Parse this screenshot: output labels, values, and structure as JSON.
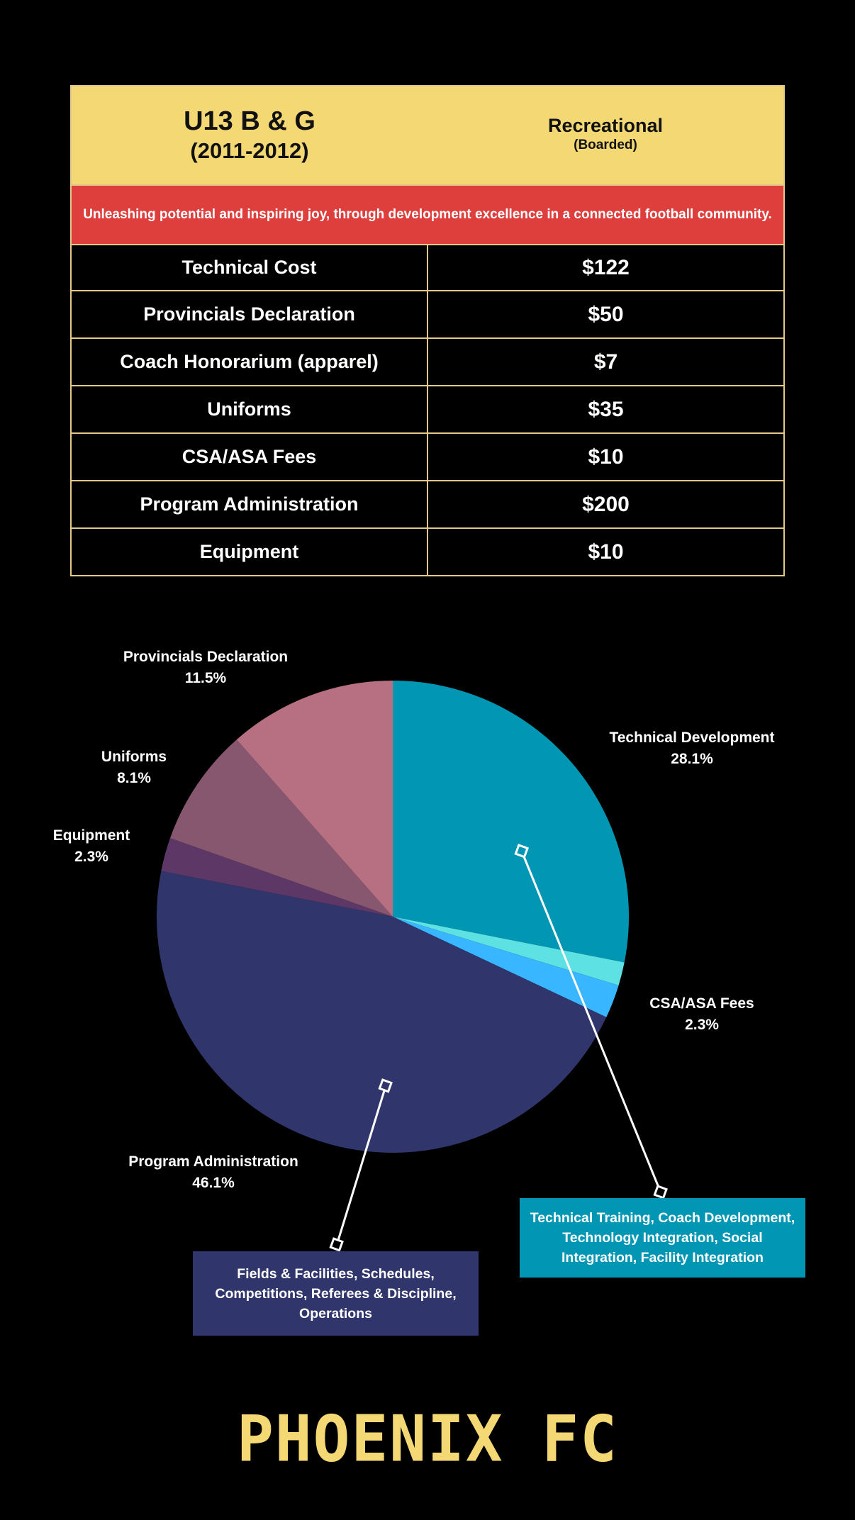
{
  "header": {
    "team_name": "U13 B & G",
    "team_years": "(2011-2012)",
    "program_type": "Recreational",
    "program_sub": "(Boarded)"
  },
  "mission": "Unleashing potential and inspiring joy, through development excellence in a connected football community.",
  "costs": [
    {
      "label": "Technical Cost",
      "value": "$122"
    },
    {
      "label": "Provincials Declaration",
      "value": "$50"
    },
    {
      "label": "Coach Honorarium (apparel)",
      "value": "$7"
    },
    {
      "label": "Uniforms",
      "value": "$35"
    },
    {
      "label": "CSA/ASA Fees",
      "value": "$10"
    },
    {
      "label": "Program Administration",
      "value": "$200"
    },
    {
      "label": "Equipment",
      "value": "$10"
    }
  ],
  "chart_data": {
    "type": "pie",
    "title": "",
    "slices": [
      {
        "name": "Technical Development",
        "pct_label": "28.1%",
        "value": 28.1,
        "color": "#0096b4"
      },
      {
        "name": "",
        "pct_label": "",
        "value": 1.6,
        "color": "#5ee1e3"
      },
      {
        "name": "CSA/ASA Fees",
        "pct_label": "2.3%",
        "value": 2.3,
        "color": "#38b6ff"
      },
      {
        "name": "Program Administration",
        "pct_label": "46.1%",
        "value": 46.1,
        "color": "#30356c"
      },
      {
        "name": "Equipment",
        "pct_label": "2.3%",
        "value": 2.3,
        "color": "#5d3866"
      },
      {
        "name": "Uniforms",
        "pct_label": "8.1%",
        "value": 8.1,
        "color": "#87566f"
      },
      {
        "name": "Provincials Declaration",
        "pct_label": "11.5%",
        "value": 11.5,
        "color": "#b77081"
      }
    ]
  },
  "callouts": {
    "technical": "Technical Training, Coach Development, Technology Integration, Social Integration, Facility Integration",
    "administration": "Fields & Facilities, Schedules, Competitions, Referees & Discipline, Operations"
  },
  "colors": {
    "accent_yellow": "#f3d873",
    "mission_red": "#de3e3c",
    "table_border": "#e3c88a"
  },
  "logo": "PHOENIX FC"
}
